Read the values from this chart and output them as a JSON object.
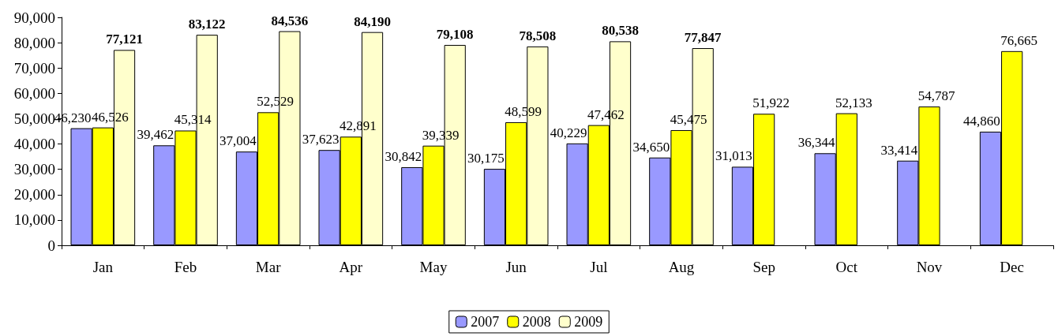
{
  "chart_data": {
    "type": "bar",
    "categories": [
      "Jan",
      "Feb",
      "Mar",
      "Apr",
      "May",
      "Jun",
      "Jul",
      "Aug",
      "Sep",
      "Oct",
      "Nov",
      "Dec"
    ],
    "series": [
      {
        "name": "2007",
        "color": "#9999ff",
        "values": [
          46230,
          39462,
          37004,
          37623,
          30842,
          30175,
          40229,
          34650,
          31013,
          36344,
          33414,
          44860
        ],
        "value_labels": [
          "46,230",
          "39,462",
          "37,004",
          "37,623",
          "30,842",
          "30,175",
          "40,229",
          "34,650",
          "31,013",
          "36,344",
          "33,414",
          "44,860"
        ]
      },
      {
        "name": "2008",
        "color": "#ffff00",
        "values": [
          46526,
          45314,
          52529,
          42891,
          39339,
          48599,
          47462,
          45475,
          51922,
          52133,
          54787,
          76665
        ],
        "value_labels": [
          "46,526",
          "45,314",
          "52,529",
          "42,891",
          "39,339",
          "48,599",
          "47,462",
          "45,475",
          "51,922",
          "52,133",
          "54,787",
          "76,665"
        ]
      },
      {
        "name": "2009",
        "color": "#ffffcc",
        "values": [
          77121,
          83122,
          84536,
          84190,
          79108,
          78508,
          80538,
          77847,
          null,
          null,
          null,
          null
        ],
        "value_labels": [
          "77,121",
          "83,122",
          "84,536",
          "84,190",
          "79,108",
          "78,508",
          "80,538",
          "77,847",
          null,
          null,
          null,
          null
        ]
      }
    ],
    "ylim": [
      0,
      90000
    ],
    "yticks": [
      0,
      {
        "value": 10000,
        "label": "10,000"
      },
      {
        "value": 20000,
        "label": "20,000"
      },
      {
        "value": 30000,
        "label": "30,000"
      },
      {
        "value": 40000,
        "label": "40,000"
      },
      {
        "value": 50000,
        "label": "50,000"
      },
      {
        "value": 60000,
        "label": "60,000"
      },
      {
        "value": 70000,
        "label": "70,000"
      },
      {
        "value": 80000,
        "label": "80,000"
      },
      {
        "value": 90000,
        "label": "90,000"
      }
    ],
    "grid": false,
    "legend": "bottom"
  }
}
